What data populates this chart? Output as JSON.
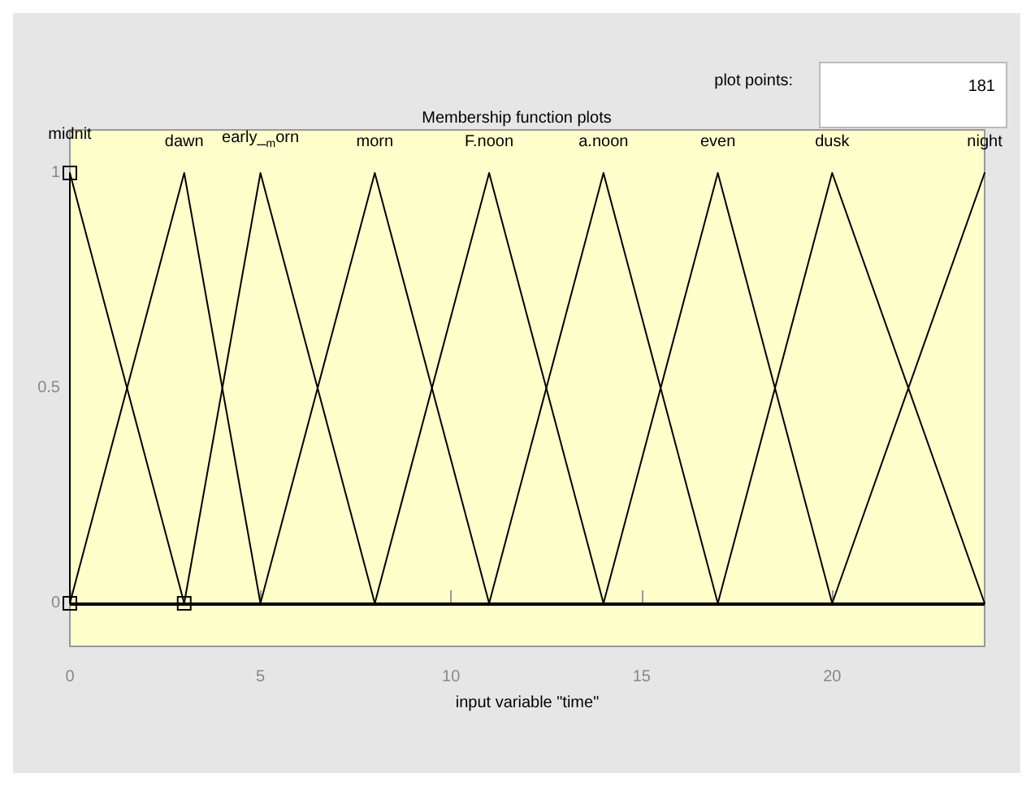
{
  "chart_data": {
    "type": "line",
    "title": "Membership function plots",
    "xlabel": "input variable \"time\"",
    "annotations": [
      "plot points:",
      "181"
    ],
    "xlim": [
      0,
      24
    ],
    "ylim": [
      -0.1,
      1.1
    ],
    "xticks": [
      0,
      5,
      10,
      15,
      20
    ],
    "yticks": [
      0,
      0.5,
      1
    ],
    "grid": false,
    "legend": false,
    "line_style": "solid",
    "ref_lines": [
      {
        "axis": "y",
        "value": 0,
        "color": "#000000"
      }
    ],
    "series": [
      {
        "name": "midnit",
        "color": "#000000",
        "x": [
          0,
          0,
          3
        ],
        "values": [
          0,
          1,
          0
        ],
        "marker": "square"
      },
      {
        "name": "dawn",
        "color": "#000000",
        "x": [
          0,
          3,
          5
        ],
        "values": [
          0,
          1,
          0
        ]
      },
      {
        "name": "early_$_{m}$orn",
        "color": "#000000",
        "x": [
          3,
          5,
          8
        ],
        "values": [
          0,
          1,
          0
        ]
      },
      {
        "name": "morn",
        "color": "#000000",
        "x": [
          5,
          8,
          11
        ],
        "values": [
          0,
          1,
          0
        ]
      },
      {
        "name": "F.noon",
        "color": "#000000",
        "x": [
          8,
          11,
          14
        ],
        "values": [
          0,
          1,
          0
        ]
      },
      {
        "name": "a.noon",
        "color": "#000000",
        "x": [
          11,
          14,
          17
        ],
        "values": [
          0,
          1,
          0
        ]
      },
      {
        "name": "even",
        "color": "#000000",
        "x": [
          14,
          17,
          20
        ],
        "values": [
          0,
          1,
          0
        ]
      },
      {
        "name": "dusk",
        "color": "#000000",
        "x": [
          17,
          20,
          24
        ],
        "values": [
          0,
          1,
          0
        ]
      },
      {
        "name": "night",
        "color": "#000000",
        "x": [
          20,
          24
        ],
        "values": [
          0,
          1
        ]
      }
    ]
  }
}
